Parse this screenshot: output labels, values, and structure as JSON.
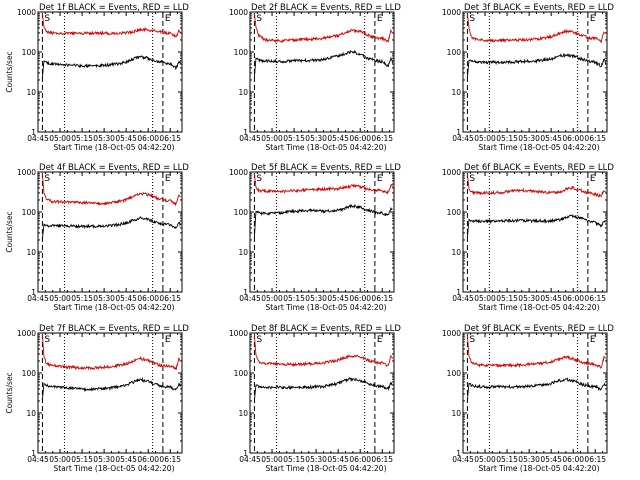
{
  "chart_data": [
    {
      "type": "line",
      "title": "Det 1f BLACK = Events, RED = LLD",
      "xlabel": "Start Time (18-Oct-05 04:42:20)",
      "ylabel": "Counts/sec",
      "yscale": "log",
      "ylim": [
        1,
        1000
      ],
      "xlim": [
        0,
        98
      ],
      "yticks": [
        1,
        10,
        100,
        1000
      ],
      "xtick_labels": [
        "04:45",
        "05:00",
        "05:15",
        "05:30",
        "05:45",
        "06:00",
        "06:15"
      ],
      "markers": [
        {
          "label": "S",
          "x": 3
        },
        {
          "label": "E",
          "x": 85
        }
      ],
      "dotted_x": [
        18,
        78
      ],
      "series": [
        {
          "color": "#d40000",
          "x": [
            3,
            4,
            6,
            10,
            20,
            30,
            40,
            50,
            60,
            66,
            70,
            75,
            80,
            85,
            90,
            94,
            96,
            97
          ],
          "y": [
            950,
            420,
            330,
            300,
            290,
            295,
            300,
            290,
            300,
            330,
            360,
            360,
            330,
            310,
            290,
            250,
            330,
            300
          ]
        },
        {
          "color": "#000000",
          "x": [
            3,
            4,
            6,
            10,
            20,
            30,
            40,
            50,
            60,
            66,
            70,
            75,
            80,
            85,
            90,
            94,
            96,
            97
          ],
          "y": [
            22,
            60,
            52,
            50,
            48,
            45,
            45,
            48,
            55,
            70,
            75,
            70,
            60,
            55,
            50,
            40,
            58,
            50
          ]
        }
      ]
    },
    {
      "type": "line",
      "title": "Det 2f BLACK = Events, RED = LLD",
      "xlabel": "Start Time (18-Oct-05 04:42:20)",
      "ylabel": "",
      "yscale": "log",
      "ylim": [
        1,
        1000
      ],
      "xlim": [
        0,
        98
      ],
      "yticks": [
        1,
        10,
        100,
        1000
      ],
      "xtick_labels": [
        "04:45",
        "05:00",
        "05:15",
        "05:30",
        "05:45",
        "06:00",
        "06:15"
      ],
      "markers": [
        {
          "label": "S",
          "x": 3
        },
        {
          "label": "E",
          "x": 85
        }
      ],
      "dotted_x": [
        18,
        78
      ],
      "series": [
        {
          "color": "#d40000",
          "x": [
            3,
            4,
            6,
            10,
            20,
            30,
            40,
            50,
            60,
            66,
            70,
            75,
            80,
            85,
            90,
            94,
            96,
            97
          ],
          "y": [
            950,
            420,
            260,
            200,
            190,
            200,
            210,
            220,
            260,
            320,
            350,
            330,
            270,
            230,
            220,
            180,
            360,
            300
          ]
        },
        {
          "color": "#000000",
          "x": [
            3,
            4,
            6,
            10,
            20,
            30,
            40,
            50,
            60,
            66,
            70,
            75,
            80,
            85,
            90,
            94,
            96,
            97
          ],
          "y": [
            22,
            70,
            62,
            60,
            58,
            60,
            62,
            65,
            80,
            95,
            100,
            90,
            70,
            62,
            58,
            45,
            70,
            55
          ]
        }
      ]
    },
    {
      "type": "line",
      "title": "Det 3f BLACK = Events, RED = LLD",
      "xlabel": "Start Time (18-Oct-05 04:42:20)",
      "ylabel": "",
      "yscale": "log",
      "ylim": [
        1,
        1000
      ],
      "xlim": [
        0,
        98
      ],
      "yticks": [
        1,
        10,
        100,
        1000
      ],
      "xtick_labels": [
        "04:45",
        "05:00",
        "05:15",
        "05:30",
        "05:45",
        "06:00",
        "06:15"
      ],
      "markers": [
        {
          "label": "S",
          "x": 3
        },
        {
          "label": "E",
          "x": 85
        }
      ],
      "dotted_x": [
        18,
        78
      ],
      "series": [
        {
          "color": "#d40000",
          "x": [
            3,
            4,
            6,
            10,
            20,
            30,
            40,
            50,
            60,
            66,
            70,
            75,
            80,
            85,
            90,
            94,
            96,
            97
          ],
          "y": [
            950,
            400,
            230,
            200,
            190,
            195,
            200,
            210,
            240,
            300,
            330,
            320,
            270,
            230,
            220,
            180,
            330,
            280
          ]
        },
        {
          "color": "#000000",
          "x": [
            3,
            4,
            6,
            10,
            20,
            30,
            40,
            50,
            60,
            66,
            70,
            75,
            80,
            85,
            90,
            94,
            96,
            97
          ],
          "y": [
            22,
            62,
            58,
            55,
            55,
            56,
            58,
            60,
            68,
            80,
            85,
            80,
            68,
            60,
            56,
            45,
            65,
            55
          ]
        }
      ]
    },
    {
      "type": "line",
      "title": "Det 4f BLACK = Events, RED = LLD",
      "xlabel": "Start Time (18-Oct-05 04:42:20)",
      "ylabel": "Counts/sec",
      "yscale": "log",
      "ylim": [
        1,
        1000
      ],
      "xlim": [
        0,
        98
      ],
      "yticks": [
        1,
        10,
        100,
        1000
      ],
      "xtick_labels": [
        "04:45",
        "05:00",
        "05:15",
        "05:30",
        "05:45",
        "06:00",
        "06:15"
      ],
      "markers": [
        {
          "label": "S",
          "x": 3
        },
        {
          "label": "E",
          "x": 85
        }
      ],
      "dotted_x": [
        18,
        78
      ],
      "series": [
        {
          "color": "#d40000",
          "x": [
            3,
            4,
            6,
            10,
            20,
            30,
            40,
            50,
            60,
            66,
            70,
            75,
            80,
            85,
            90,
            94,
            96,
            97
          ],
          "y": [
            950,
            300,
            200,
            185,
            175,
            170,
            165,
            170,
            200,
            260,
            290,
            270,
            230,
            200,
            190,
            160,
            280,
            240
          ]
        },
        {
          "color": "#000000",
          "x": [
            3,
            4,
            6,
            10,
            20,
            30,
            40,
            50,
            60,
            66,
            70,
            75,
            80,
            85,
            90,
            94,
            96,
            97
          ],
          "y": [
            20,
            50,
            46,
            45,
            45,
            44,
            44,
            46,
            52,
            65,
            70,
            65,
            55,
            50,
            48,
            40,
            55,
            48
          ]
        }
      ]
    },
    {
      "type": "line",
      "title": "Det 5f BLACK = Events, RED = LLD",
      "xlabel": "Start Time (18-Oct-05 04:42:20)",
      "ylabel": "",
      "yscale": "log",
      "ylim": [
        1,
        1000
      ],
      "xlim": [
        0,
        98
      ],
      "yticks": [
        1,
        10,
        100,
        1000
      ],
      "xtick_labels": [
        "04:45",
        "05:00",
        "05:15",
        "05:30",
        "05:45",
        "06:00",
        "06:15"
      ],
      "markers": [
        {
          "label": "S",
          "x": 3
        },
        {
          "label": "E",
          "x": 85
        }
      ],
      "dotted_x": [
        18,
        78
      ],
      "series": [
        {
          "color": "#d40000",
          "x": [
            3,
            4,
            6,
            10,
            20,
            30,
            40,
            50,
            60,
            66,
            70,
            75,
            80,
            85,
            90,
            94,
            96,
            97
          ],
          "y": [
            950,
            420,
            340,
            330,
            330,
            340,
            360,
            370,
            380,
            420,
            450,
            430,
            380,
            350,
            340,
            300,
            480,
            420
          ]
        },
        {
          "color": "#000000",
          "x": [
            3,
            4,
            6,
            10,
            20,
            30,
            40,
            50,
            60,
            66,
            70,
            75,
            80,
            85,
            90,
            94,
            96,
            97
          ],
          "y": [
            22,
            105,
            95,
            92,
            95,
            105,
            110,
            105,
            110,
            130,
            145,
            130,
            110,
            100,
            95,
            80,
            130,
            110
          ]
        }
      ]
    },
    {
      "type": "line",
      "title": "Det 6f BLACK = Events, RED = LLD",
      "xlabel": "Start Time (18-Oct-05 04:42:20)",
      "ylabel": "",
      "yscale": "log",
      "ylim": [
        1,
        1000
      ],
      "xlim": [
        0,
        98
      ],
      "yticks": [
        1,
        10,
        100,
        1000
      ],
      "xtick_labels": [
        "04:45",
        "05:00",
        "05:15",
        "05:30",
        "05:45",
        "06:00",
        "06:15"
      ],
      "markers": [
        {
          "label": "S",
          "x": 3
        },
        {
          "label": "E",
          "x": 85
        }
      ],
      "dotted_x": [
        18,
        78
      ],
      "series": [
        {
          "color": "#d40000",
          "x": [
            3,
            4,
            6,
            10,
            20,
            30,
            40,
            50,
            60,
            66,
            70,
            75,
            80,
            85,
            90,
            94,
            96,
            97
          ],
          "y": [
            950,
            380,
            310,
            300,
            300,
            320,
            350,
            330,
            300,
            320,
            370,
            400,
            350,
            300,
            280,
            250,
            360,
            330
          ]
        },
        {
          "color": "#000000",
          "x": [
            3,
            4,
            6,
            10,
            20,
            30,
            40,
            50,
            60,
            66,
            70,
            75,
            80,
            85,
            90,
            94,
            96,
            97
          ],
          "y": [
            22,
            65,
            60,
            58,
            58,
            60,
            62,
            60,
            60,
            65,
            75,
            80,
            70,
            60,
            55,
            45,
            60,
            55
          ]
        }
      ]
    },
    {
      "type": "line",
      "title": "Det 7f BLACK = Events, RED = LLD",
      "xlabel": "Start Time (18-Oct-05 04:42:20)",
      "ylabel": "Counts/sec",
      "yscale": "log",
      "ylim": [
        1,
        1000
      ],
      "xlim": [
        0,
        98
      ],
      "yticks": [
        1,
        10,
        100,
        1000
      ],
      "xtick_labels": [
        "04:45",
        "05:00",
        "05:15",
        "05:30",
        "05:45",
        "06:00",
        "06:15"
      ],
      "markers": [
        {
          "label": "S",
          "x": 3
        },
        {
          "label": "E",
          "x": 85
        }
      ],
      "dotted_x": [
        18,
        78
      ],
      "series": [
        {
          "color": "#d40000",
          "x": [
            3,
            4,
            6,
            10,
            20,
            30,
            40,
            50,
            60,
            66,
            70,
            75,
            80,
            85,
            90,
            94,
            96,
            97
          ],
          "y": [
            950,
            260,
            170,
            150,
            140,
            135,
            135,
            145,
            170,
            210,
            230,
            210,
            170,
            150,
            150,
            130,
            230,
            210
          ]
        },
        {
          "color": "#000000",
          "x": [
            3,
            4,
            6,
            10,
            20,
            30,
            40,
            50,
            60,
            66,
            70,
            75,
            80,
            85,
            90,
            94,
            96,
            97
          ],
          "y": [
            20,
            55,
            48,
            45,
            42,
            40,
            40,
            42,
            50,
            62,
            68,
            62,
            52,
            46,
            44,
            38,
            55,
            48
          ]
        }
      ]
    },
    {
      "type": "line",
      "title": "Det 8f BLACK = Events, RED = LLD",
      "xlabel": "Start Time (18-Oct-05 04:42:20)",
      "ylabel": "",
      "yscale": "log",
      "ylim": [
        1,
        1000
      ],
      "xlim": [
        0,
        98
      ],
      "yticks": [
        1,
        10,
        100,
        1000
      ],
      "xtick_labels": [
        "04:45",
        "05:00",
        "05:15",
        "05:30",
        "05:45",
        "06:00",
        "06:15"
      ],
      "markers": [
        {
          "label": "S",
          "x": 3
        },
        {
          "label": "E",
          "x": 85
        }
      ],
      "dotted_x": [
        18,
        78
      ],
      "series": [
        {
          "color": "#d40000",
          "x": [
            3,
            4,
            6,
            10,
            20,
            30,
            40,
            50,
            60,
            66,
            70,
            75,
            80,
            85,
            90,
            94,
            96,
            97
          ],
          "y": [
            950,
            280,
            190,
            175,
            165,
            165,
            170,
            180,
            210,
            250,
            270,
            250,
            210,
            185,
            180,
            150,
            280,
            230
          ]
        },
        {
          "color": "#000000",
          "x": [
            3,
            4,
            6,
            10,
            20,
            30,
            40,
            50,
            60,
            66,
            70,
            75,
            80,
            85,
            90,
            94,
            96,
            97
          ],
          "y": [
            20,
            50,
            45,
            44,
            44,
            43,
            44,
            46,
            55,
            68,
            72,
            65,
            55,
            48,
            46,
            40,
            58,
            50
          ]
        }
      ]
    },
    {
      "type": "line",
      "title": "Det 9f BLACK = Events, RED = LLD",
      "xlabel": "Start Time (18-Oct-05 04:42:20)",
      "ylabel": "",
      "yscale": "log",
      "ylim": [
        1,
        1000
      ],
      "xlim": [
        0,
        98
      ],
      "yticks": [
        1,
        10,
        100,
        1000
      ],
      "xtick_labels": [
        "04:45",
        "05:00",
        "05:15",
        "05:30",
        "05:45",
        "06:00",
        "06:15"
      ],
      "markers": [
        {
          "label": "S",
          "x": 3
        },
        {
          "label": "E",
          "x": 85
        }
      ],
      "dotted_x": [
        18,
        78
      ],
      "series": [
        {
          "color": "#d40000",
          "x": [
            3,
            4,
            6,
            10,
            20,
            30,
            40,
            50,
            60,
            66,
            70,
            75,
            80,
            85,
            90,
            94,
            96,
            97
          ],
          "y": [
            950,
            260,
            180,
            160,
            155,
            155,
            160,
            170,
            190,
            230,
            250,
            230,
            190,
            170,
            165,
            140,
            250,
            220
          ]
        },
        {
          "color": "#000000",
          "x": [
            3,
            4,
            6,
            10,
            20,
            30,
            40,
            50,
            60,
            66,
            70,
            75,
            80,
            85,
            90,
            94,
            96,
            97
          ],
          "y": [
            20,
            55,
            48,
            46,
            45,
            45,
            46,
            48,
            55,
            65,
            70,
            64,
            54,
            48,
            46,
            38,
            55,
            48
          ]
        }
      ]
    }
  ]
}
